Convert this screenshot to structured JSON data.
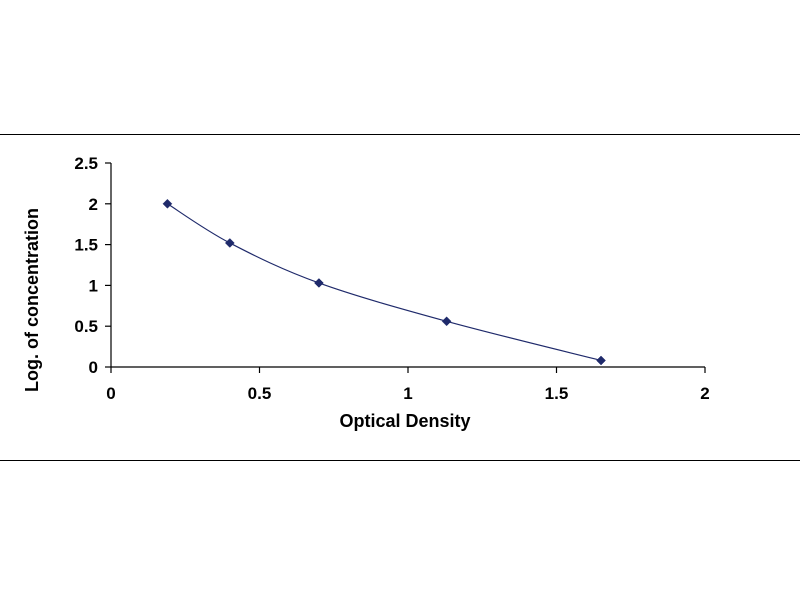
{
  "chart_data": {
    "type": "scatter",
    "title": "",
    "xlabel": "Optical Density",
    "ylabel": "Log. of concentration",
    "xlim": [
      0,
      2
    ],
    "ylim": [
      0,
      2.5
    ],
    "x_ticks": [
      "0",
      "0.5",
      "1",
      "1.5",
      "2"
    ],
    "y_ticks": [
      "0",
      "0.5",
      "1",
      "1.5",
      "2",
      "2.5"
    ],
    "grid": false,
    "legend": "none",
    "trendline": "smooth curve",
    "series": [
      {
        "x": [
          0.19,
          0.4,
          0.7,
          1.13,
          1.65
        ],
        "y": [
          2.0,
          1.52,
          1.03,
          0.56,
          0.08
        ],
        "color": "#1f2a6b"
      }
    ]
  }
}
